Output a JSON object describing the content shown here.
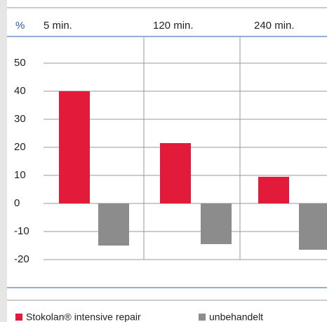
{
  "chart_data": {
    "type": "bar",
    "y_label": "%",
    "categories": [
      "5 min.",
      "120 min.",
      "240 min."
    ],
    "series": [
      {
        "name": "Stokolan® intensive repair",
        "color": "#e31b3b",
        "values": [
          40,
          21.5,
          9.5
        ]
      },
      {
        "name": "unbehandelt",
        "color": "#8c8c8c",
        "values": [
          -15,
          -14.5,
          -16.5
        ]
      }
    ],
    "ylim": [
      -20,
      50
    ],
    "yticks": [
      -20,
      -10,
      0,
      10,
      20,
      30,
      40,
      50
    ],
    "grid": true
  }
}
